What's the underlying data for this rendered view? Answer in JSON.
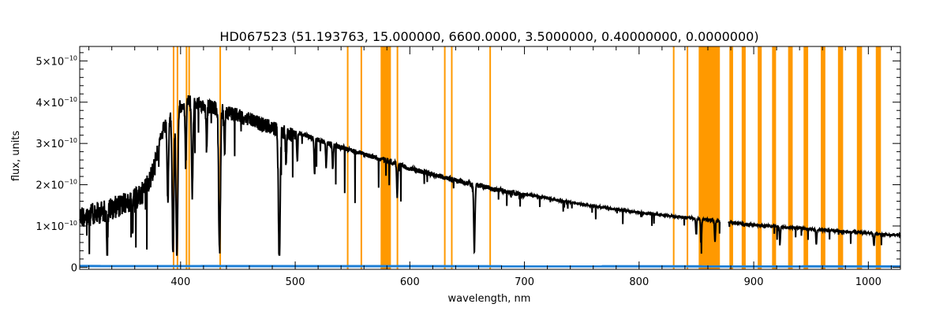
{
  "chart_data": {
    "type": "line",
    "title": "HD067523    (51.193763, 15.000000, 6600.0000, 3.5000000, 0.40000000, 0.0000000)",
    "xlabel": "wavelength, nm",
    "ylabel": "flux, units",
    "xlim": [
      312,
      1028
    ],
    "ylim": [
      -0.05,
      5.35
    ],
    "y_scale_note": "values in units of 10^-10",
    "x_ticks": [
      400,
      500,
      600,
      700,
      800,
      900,
      1000
    ],
    "y_ticks": [
      {
        "value": 0,
        "mantissa": "0",
        "exponent": ""
      },
      {
        "value": 1,
        "mantissa": "1×10",
        "exponent": "−10"
      },
      {
        "value": 2,
        "mantissa": "2×10",
        "exponent": "−10"
      },
      {
        "value": 3,
        "mantissa": "3×10",
        "exponent": "−10"
      },
      {
        "value": 4,
        "mantissa": "4×10",
        "exponent": "−10"
      },
      {
        "value": 5,
        "mantissa": "5×10",
        "exponent": "−10"
      }
    ],
    "colors": {
      "flux": "#000000",
      "error": "#1e7fd6",
      "masked": "#ff9900"
    },
    "masked_regions": [
      [
        393.2,
        393.9
      ],
      [
        396.6,
        397.3
      ],
      [
        404.5,
        405.2
      ],
      [
        406.8,
        407.6
      ],
      [
        433.9,
        434.7
      ],
      [
        545.1,
        545.9
      ],
      [
        557.0,
        557.8
      ],
      [
        574.5,
        583.5
      ],
      [
        588.5,
        589.5
      ],
      [
        629.8,
        630.6
      ],
      [
        635.9,
        636.7
      ],
      [
        669.4,
        670.6
      ],
      [
        829.5,
        830.5
      ],
      [
        841.5,
        842.5
      ],
      [
        852.0,
        870.5
      ],
      [
        878.8,
        882.0
      ],
      [
        889.5,
        893.0
      ],
      [
        903.5,
        907.0
      ],
      [
        916.0,
        919.5
      ],
      [
        930.0,
        934.0
      ],
      [
        943.5,
        947.5
      ],
      [
        958.5,
        962.5
      ],
      [
        973.5,
        978.0
      ],
      [
        990.0,
        994.5
      ],
      [
        1006.5,
        1011.0
      ]
    ],
    "series": [
      {
        "name": "flux",
        "continuum": {
          "x": [
            312,
            330,
            350,
            365,
            375,
            385,
            395,
            405,
            420,
            440,
            460,
            480,
            500,
            530,
            560,
            580,
            600,
            650,
            700,
            750,
            800,
            850,
            900,
            950,
            1000,
            1028
          ],
          "y": [
            1.5,
            1.6,
            1.8,
            2.0,
            2.5,
            3.5,
            4.0,
            4.2,
            4.1,
            3.95,
            3.75,
            3.55,
            3.35,
            3.05,
            2.8,
            2.65,
            2.45,
            2.1,
            1.8,
            1.55,
            1.35,
            1.2,
            1.05,
            0.95,
            0.85,
            0.8
          ]
        },
        "absorption_lines": [
          {
            "x": 336,
            "depth": 1.0
          },
          {
            "x": 358,
            "depth": 0.8
          },
          {
            "x": 388.9,
            "depth": 2.0
          },
          {
            "x": 393.4,
            "depth": 3.4
          },
          {
            "x": 396.8,
            "depth": 3.6
          },
          {
            "x": 404.5,
            "depth": 1.5
          },
          {
            "x": 410.2,
            "depth": 2.2
          },
          {
            "x": 422.7,
            "depth": 1.0
          },
          {
            "x": 434.0,
            "depth": 3.5
          },
          {
            "x": 438.4,
            "depth": 1.0
          },
          {
            "x": 486.1,
            "depth": 3.3
          },
          {
            "x": 492.0,
            "depth": 0.8
          },
          {
            "x": 501.8,
            "depth": 0.7
          },
          {
            "x": 516.9,
            "depth": 0.9
          },
          {
            "x": 527.0,
            "depth": 0.6
          },
          {
            "x": 532.8,
            "depth": 0.6
          },
          {
            "x": 589.0,
            "depth": 0.8
          },
          {
            "x": 656.3,
            "depth": 1.6
          },
          {
            "x": 849.8,
            "depth": 0.4
          },
          {
            "x": 854.2,
            "depth": 0.6
          },
          {
            "x": 866.2,
            "depth": 0.5
          },
          {
            "x": 922.9,
            "depth": 0.4
          },
          {
            "x": 954.6,
            "depth": 0.35
          },
          {
            "x": 1004.9,
            "depth": 0.3
          }
        ],
        "gaps": [
          [
            870.5,
            878.0
          ]
        ]
      },
      {
        "name": "error",
        "x": [
          312,
          1028
        ],
        "y": [
          0.03,
          0.02
        ]
      }
    ]
  }
}
